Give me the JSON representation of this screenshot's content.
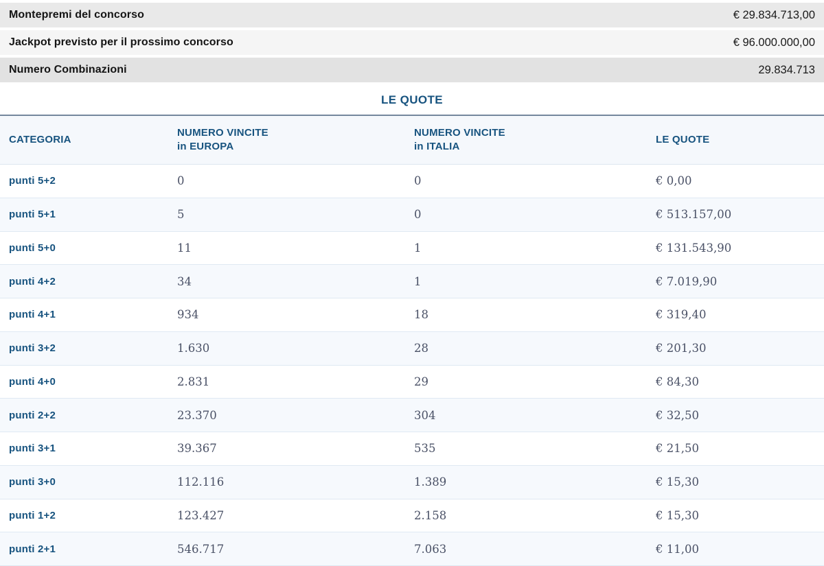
{
  "colors": {
    "accent_blue": "#17537f",
    "number_text": "#4a5166",
    "header_bg": "#f5f8fc",
    "row_alt_bg": "#f6f9fd",
    "summary_bg_1": "#e9e9e9",
    "summary_bg_2": "#f5f5f5",
    "summary_bg_3": "#e2e2e2",
    "table_top_border": "#74879c"
  },
  "summary": {
    "rows": [
      {
        "label": "Montepremi del concorso",
        "value": "€ 29.834.713,00"
      },
      {
        "label": "Jackpot previsto per il prossimo concorso",
        "value": "€ 96.000.000,00"
      },
      {
        "label": "Numero Combinazioni",
        "value": "29.834.713"
      }
    ]
  },
  "quote_section": {
    "title": "LE QUOTE"
  },
  "quote_table": {
    "headers": {
      "categoria": "CATEGORIA",
      "europa_line1": "NUMERO VINCITE",
      "europa_line2": "in EUROPA",
      "italia_line1": "NUMERO VINCITE",
      "italia_line2": "in ITALIA",
      "quote": "LE QUOTE"
    },
    "rows": [
      {
        "category": "punti 5+2",
        "europa": "0",
        "italia": "0",
        "quota": "€ 0,00"
      },
      {
        "category": "punti 5+1",
        "europa": "5",
        "italia": "0",
        "quota": "€ 513.157,00"
      },
      {
        "category": "punti 5+0",
        "europa": "11",
        "italia": "1",
        "quota": "€ 131.543,90"
      },
      {
        "category": "punti 4+2",
        "europa": "34",
        "italia": "1",
        "quota": "€ 7.019,90"
      },
      {
        "category": "punti 4+1",
        "europa": "934",
        "italia": "18",
        "quota": "€ 319,40"
      },
      {
        "category": "punti 3+2",
        "europa": "1.630",
        "italia": "28",
        "quota": "€ 201,30"
      },
      {
        "category": "punti 4+0",
        "europa": "2.831",
        "italia": "29",
        "quota": "€ 84,30"
      },
      {
        "category": "punti 2+2",
        "europa": "23.370",
        "italia": "304",
        "quota": "€ 32,50"
      },
      {
        "category": "punti 3+1",
        "europa": "39.367",
        "italia": "535",
        "quota": "€ 21,50"
      },
      {
        "category": "punti 3+0",
        "europa": "112.116",
        "italia": "1.389",
        "quota": "€ 15,30"
      },
      {
        "category": "punti 1+2",
        "europa": "123.427",
        "italia": "2.158",
        "quota": "€ 15,30"
      },
      {
        "category": "punti 2+1",
        "europa": "546.717",
        "italia": "7.063",
        "quota": "€ 11,00"
      }
    ]
  }
}
